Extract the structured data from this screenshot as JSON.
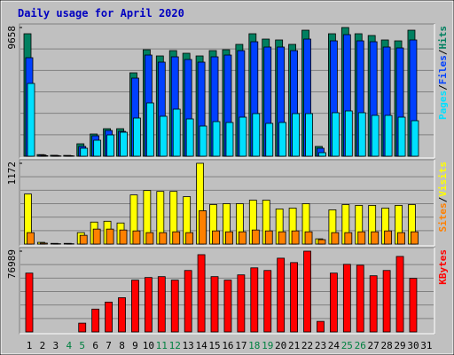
{
  "chart_data": {
    "type": "bar",
    "title": "Daily usage for April 2020",
    "categories": [
      1,
      2,
      3,
      4,
      5,
      6,
      7,
      8,
      9,
      10,
      11,
      12,
      13,
      14,
      15,
      16,
      17,
      18,
      19,
      20,
      21,
      22,
      23,
      24,
      25,
      26,
      27,
      28,
      29,
      30,
      31
    ],
    "category_colors": [
      "#000000",
      "#000000",
      "#000000",
      "#008040",
      "#008040",
      "#000000",
      "#000000",
      "#000000",
      "#000000",
      "#000000",
      "#008040",
      "#008040",
      "#000000",
      "#000000",
      "#000000",
      "#000000",
      "#000000",
      "#008040",
      "#008040",
      "#000000",
      "#000000",
      "#000000",
      "#000000",
      "#000000",
      "#008040",
      "#008040",
      "#000000",
      "#000000",
      "#000000",
      "#000000",
      "#000000"
    ],
    "separator": "/",
    "panels": [
      {
        "ylim": [
          0,
          9658
        ],
        "yticks": [
          9658
        ],
        "series": [
          {
            "name": "Hits",
            "color": "#008060",
            "values": [
              9191,
              120,
              70,
              60,
              932,
              1665,
              2065,
              2065,
              6260,
              7992,
              7526,
              7925,
              7726,
              7526,
              7925,
              7992,
              8392,
              9191,
              8791,
              8725,
              8392,
              9457,
              733,
              9191,
              9658,
              9191,
              9058,
              8725,
              8658,
              9457,
              0
            ]
          },
          {
            "name": "Files",
            "color": "#0040ff",
            "values": [
              7393,
              90,
              50,
              40,
              733,
              1532,
              1931,
              1865,
              5861,
              7592,
              7060,
              7459,
              7259,
              7060,
              7459,
              7592,
              7925,
              8591,
              8192,
              8192,
              7925,
              8791,
              599,
              8658,
              9124,
              8658,
              8591,
              8192,
              8125,
              8725,
              0
            ]
          },
          {
            "name": "Pages",
            "color": "#00e0ff",
            "values": [
              5461,
              40,
              20,
              20,
              599,
              1199,
              1598,
              1798,
              2864,
              3996,
              2997,
              3530,
              2797,
              2264,
              2597,
              2531,
              2930,
              3197,
              2464,
              2531,
              3197,
              3197,
              266,
              3263,
              3397,
              3263,
              3064,
              3064,
              2930,
              2664,
              0
            ]
          }
        ]
      },
      {
        "ylim": [
          0,
          1172
        ],
        "yticks": [
          1172
        ],
        "series": [
          {
            "name": "Visits",
            "color": "#ffff00",
            "values": [
              726,
              25,
              10,
              10,
              166,
              319,
              331,
              306,
              713,
              777,
              764,
              764,
              688,
              1172,
              573,
              586,
              586,
              637,
              637,
              510,
              522,
              586,
              76,
              497,
              573,
              561,
              561,
              522,
              561,
              573,
              0
            ]
          },
          {
            "name": "Sites",
            "color": "#ff8000",
            "values": [
              166,
              13,
              5,
              5,
              127,
              217,
              217,
              204,
              191,
              166,
              166,
              178,
              166,
              484,
              191,
              178,
              178,
              204,
              191,
              178,
              191,
              178,
              64,
              166,
              166,
              178,
              178,
              191,
              166,
              178,
              0
            ]
          }
        ]
      },
      {
        "ylim": [
          0,
          76989
        ],
        "yticks": [
          76989
        ],
        "series": [
          {
            "name": "KBytes",
            "color": "#ff0000",
            "values": [
              56066,
              0,
              0,
              0,
              8368,
              21757,
              28451,
              32635,
              49371,
              51882,
              52718,
              49371,
              58576,
              73638,
              52718,
              49371,
              54392,
              61086,
              58576,
              70291,
              66107,
              76989,
              10042,
              56066,
              64434,
              63597,
              53555,
              58576,
              71965,
              51045,
              0
            ]
          }
        ]
      }
    ]
  }
}
